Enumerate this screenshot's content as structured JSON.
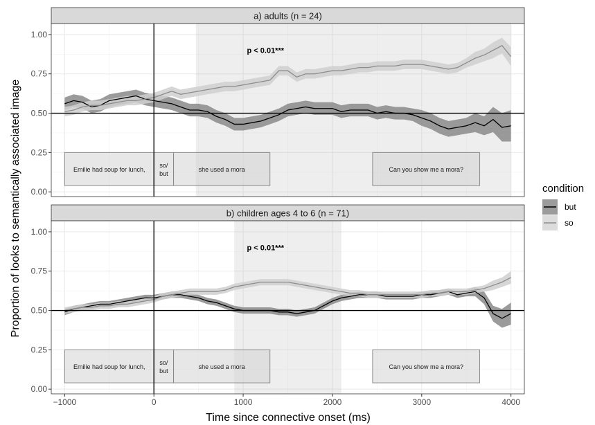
{
  "chart_data": {
    "type": "line",
    "xlabel": "Time since connective onset (ms)",
    "ylabel": "Proportion of looks to semantically associated image",
    "xlim": [
      -1150,
      4150
    ],
    "ylim": [
      -0.03,
      1.07
    ],
    "x_ticks": [
      -1000,
      0,
      1000,
      2000,
      3000,
      4000
    ],
    "x_tick_labels": [
      "−1000",
      "0",
      "1000",
      "2000",
      "3000",
      "4000"
    ],
    "y_ticks": [
      0,
      0.25,
      0.5,
      0.75,
      1.0
    ],
    "y_tick_labels": [
      "0.00",
      "0.25",
      "0.50",
      "0.75",
      "1.00"
    ],
    "grid": true,
    "legend": {
      "title": "condition",
      "position": "right",
      "entries": [
        {
          "label": "but",
          "line_color": "#000000",
          "fill_color": "#8a8a8a"
        },
        {
          "label": "so",
          "line_color": "#8c8c8c",
          "fill_color": "#d6d6d6"
        }
      ]
    },
    "panels": [
      {
        "strip": "a) adults (n = 24)",
        "shaded_window": [
          470,
          4000
        ],
        "annotation": {
          "text": "p < 0.01***",
          "x": 1250,
          "y": 0.9
        },
        "hline": 0.5,
        "vline": 0,
        "series": [
          {
            "name": "but",
            "x": [
              -1000,
              -900,
              -800,
              -700,
              -600,
              -500,
              -400,
              -300,
              -200,
              -100,
              0,
              100,
              200,
              300,
              400,
              500,
              600,
              700,
              800,
              900,
              1000,
              1100,
              1200,
              1300,
              1400,
              1500,
              1600,
              1700,
              1800,
              1900,
              2000,
              2100,
              2200,
              2300,
              2400,
              2500,
              2600,
              2700,
              2800,
              2900,
              3000,
              3100,
              3200,
              3300,
              3400,
              3500,
              3600,
              3700,
              3800,
              3900,
              4000
            ],
            "y": [
              0.56,
              0.58,
              0.57,
              0.54,
              0.55,
              0.58,
              0.59,
              0.6,
              0.61,
              0.59,
              0.58,
              0.57,
              0.56,
              0.54,
              0.52,
              0.52,
              0.51,
              0.48,
              0.46,
              0.43,
              0.43,
              0.44,
              0.45,
              0.47,
              0.49,
              0.52,
              0.53,
              0.54,
              0.53,
              0.53,
              0.53,
              0.51,
              0.52,
              0.52,
              0.52,
              0.5,
              0.51,
              0.5,
              0.5,
              0.49,
              0.47,
              0.45,
              0.42,
              0.4,
              0.41,
              0.42,
              0.44,
              0.42,
              0.46,
              0.41,
              0.42
            ],
            "ci_halfwidth": [
              0.04,
              0.04,
              0.04,
              0.04,
              0.04,
              0.04,
              0.04,
              0.04,
              0.04,
              0.04,
              0.04,
              0.04,
              0.04,
              0.04,
              0.04,
              0.04,
              0.04,
              0.04,
              0.04,
              0.04,
              0.04,
              0.04,
              0.04,
              0.04,
              0.04,
              0.04,
              0.04,
              0.04,
              0.04,
              0.04,
              0.04,
              0.04,
              0.04,
              0.04,
              0.04,
              0.04,
              0.04,
              0.04,
              0.04,
              0.04,
              0.05,
              0.05,
              0.05,
              0.05,
              0.05,
              0.05,
              0.06,
              0.06,
              0.08,
              0.09,
              0.1
            ]
          },
          {
            "name": "so",
            "x": [
              -1000,
              -900,
              -800,
              -700,
              -600,
              -500,
              -400,
              -300,
              -200,
              -100,
              0,
              100,
              200,
              300,
              400,
              500,
              600,
              700,
              800,
              900,
              1000,
              1100,
              1200,
              1300,
              1400,
              1500,
              1600,
              1700,
              1800,
              1900,
              2000,
              2100,
              2200,
              2300,
              2400,
              2500,
              2600,
              2700,
              2800,
              2900,
              3000,
              3100,
              3200,
              3300,
              3400,
              3500,
              3600,
              3700,
              3800,
              3900,
              4000
            ],
            "y": [
              0.51,
              0.52,
              0.54,
              0.55,
              0.55,
              0.56,
              0.57,
              0.58,
              0.58,
              0.59,
              0.6,
              0.62,
              0.64,
              0.62,
              0.63,
              0.64,
              0.65,
              0.66,
              0.67,
              0.67,
              0.68,
              0.69,
              0.7,
              0.71,
              0.77,
              0.77,
              0.73,
              0.75,
              0.75,
              0.76,
              0.77,
              0.77,
              0.78,
              0.79,
              0.79,
              0.8,
              0.8,
              0.8,
              0.81,
              0.81,
              0.81,
              0.8,
              0.79,
              0.78,
              0.79,
              0.82,
              0.85,
              0.87,
              0.9,
              0.93,
              0.86
            ],
            "ci_halfwidth": [
              0.03,
              0.03,
              0.03,
              0.03,
              0.03,
              0.03,
              0.03,
              0.03,
              0.03,
              0.03,
              0.03,
              0.03,
              0.03,
              0.03,
              0.03,
              0.03,
              0.03,
              0.03,
              0.03,
              0.03,
              0.03,
              0.03,
              0.03,
              0.03,
              0.03,
              0.03,
              0.03,
              0.03,
              0.03,
              0.03,
              0.03,
              0.03,
              0.03,
              0.03,
              0.03,
              0.03,
              0.03,
              0.03,
              0.03,
              0.03,
              0.03,
              0.03,
              0.03,
              0.03,
              0.03,
              0.03,
              0.04,
              0.04,
              0.05,
              0.05,
              0.06
            ]
          }
        ],
        "text_boxes": [
          {
            "text": "Emilie had soup for lunch,",
            "x0": -1000,
            "x1": 0
          },
          {
            "text": "so/\nbut",
            "x0": 0,
            "x1": 220
          },
          {
            "text": "she used a mora",
            "x0": 220,
            "x1": 1300
          },
          {
            "text": "Can you show me a mora?",
            "x0": 2450,
            "x1": 3650
          }
        ]
      },
      {
        "strip": "b) children ages 4 to 6 (n = 71)",
        "shaded_window": [
          900,
          2100
        ],
        "annotation": {
          "text": "p < 0.01***",
          "x": 1250,
          "y": 0.9
        },
        "hline": 0.5,
        "vline": 0,
        "series": [
          {
            "name": "but",
            "x": [
              -1000,
              -900,
              -800,
              -700,
              -600,
              -500,
              -400,
              -300,
              -200,
              -100,
              0,
              100,
              200,
              300,
              400,
              500,
              600,
              700,
              800,
              900,
              1000,
              1100,
              1200,
              1300,
              1400,
              1500,
              1600,
              1700,
              1800,
              1900,
              2000,
              2100,
              2200,
              2300,
              2400,
              2500,
              2600,
              2700,
              2800,
              2900,
              3000,
              3100,
              3200,
              3300,
              3400,
              3500,
              3600,
              3700,
              3800,
              3900,
              4000
            ],
            "y": [
              0.49,
              0.51,
              0.52,
              0.53,
              0.54,
              0.54,
              0.55,
              0.56,
              0.57,
              0.58,
              0.58,
              0.59,
              0.6,
              0.6,
              0.59,
              0.58,
              0.56,
              0.55,
              0.53,
              0.51,
              0.5,
              0.5,
              0.5,
              0.5,
              0.49,
              0.49,
              0.48,
              0.49,
              0.5,
              0.53,
              0.56,
              0.58,
              0.59,
              0.6,
              0.6,
              0.6,
              0.59,
              0.59,
              0.59,
              0.59,
              0.6,
              0.6,
              0.61,
              0.62,
              0.6,
              0.61,
              0.62,
              0.58,
              0.48,
              0.45,
              0.48
            ],
            "ci_halfwidth": [
              0.02,
              0.02,
              0.02,
              0.02,
              0.02,
              0.02,
              0.02,
              0.02,
              0.02,
              0.02,
              0.02,
              0.02,
              0.02,
              0.02,
              0.02,
              0.02,
              0.02,
              0.02,
              0.02,
              0.02,
              0.02,
              0.02,
              0.02,
              0.02,
              0.02,
              0.02,
              0.02,
              0.02,
              0.02,
              0.02,
              0.02,
              0.02,
              0.02,
              0.02,
              0.02,
              0.02,
              0.02,
              0.02,
              0.02,
              0.02,
              0.02,
              0.02,
              0.02,
              0.02,
              0.02,
              0.02,
              0.03,
              0.04,
              0.05,
              0.06,
              0.07
            ]
          },
          {
            "name": "so",
            "x": [
              -1000,
              -900,
              -800,
              -700,
              -600,
              -500,
              -400,
              -300,
              -200,
              -100,
              0,
              100,
              200,
              300,
              400,
              500,
              600,
              700,
              800,
              900,
              1000,
              1100,
              1200,
              1300,
              1400,
              1500,
              1600,
              1700,
              1800,
              1900,
              2000,
              2100,
              2200,
              2300,
              2400,
              2500,
              2600,
              2700,
              2800,
              2900,
              3000,
              3100,
              3200,
              3300,
              3400,
              3500,
              3600,
              3700,
              3800,
              3900,
              4000
            ],
            "y": [
              0.5,
              0.51,
              0.52,
              0.52,
              0.53,
              0.53,
              0.54,
              0.54,
              0.55,
              0.56,
              0.57,
              0.59,
              0.6,
              0.61,
              0.62,
              0.62,
              0.62,
              0.62,
              0.63,
              0.65,
              0.66,
              0.67,
              0.68,
              0.68,
              0.68,
              0.68,
              0.67,
              0.66,
              0.65,
              0.64,
              0.63,
              0.62,
              0.61,
              0.61,
              0.6,
              0.6,
              0.6,
              0.6,
              0.6,
              0.6,
              0.6,
              0.61,
              0.61,
              0.62,
              0.62,
              0.62,
              0.63,
              0.64,
              0.66,
              0.68,
              0.71
            ],
            "ci_halfwidth": [
              0.02,
              0.02,
              0.02,
              0.02,
              0.02,
              0.02,
              0.02,
              0.02,
              0.02,
              0.02,
              0.02,
              0.02,
              0.02,
              0.02,
              0.02,
              0.02,
              0.02,
              0.02,
              0.02,
              0.02,
              0.02,
              0.02,
              0.02,
              0.02,
              0.02,
              0.02,
              0.02,
              0.02,
              0.02,
              0.02,
              0.02,
              0.02,
              0.02,
              0.02,
              0.02,
              0.02,
              0.02,
              0.02,
              0.02,
              0.02,
              0.02,
              0.02,
              0.02,
              0.02,
              0.02,
              0.02,
              0.02,
              0.02,
              0.03,
              0.03,
              0.04
            ]
          }
        ],
        "text_boxes": [
          {
            "text": "Emilie had soup for lunch,",
            "x0": -1000,
            "x1": 0
          },
          {
            "text": "so/\nbut",
            "x0": 0,
            "x1": 220
          },
          {
            "text": "she used a mora",
            "x0": 220,
            "x1": 1300
          },
          {
            "text": "Can you show me a mora?",
            "x0": 2450,
            "x1": 3650
          }
        ]
      }
    ]
  }
}
